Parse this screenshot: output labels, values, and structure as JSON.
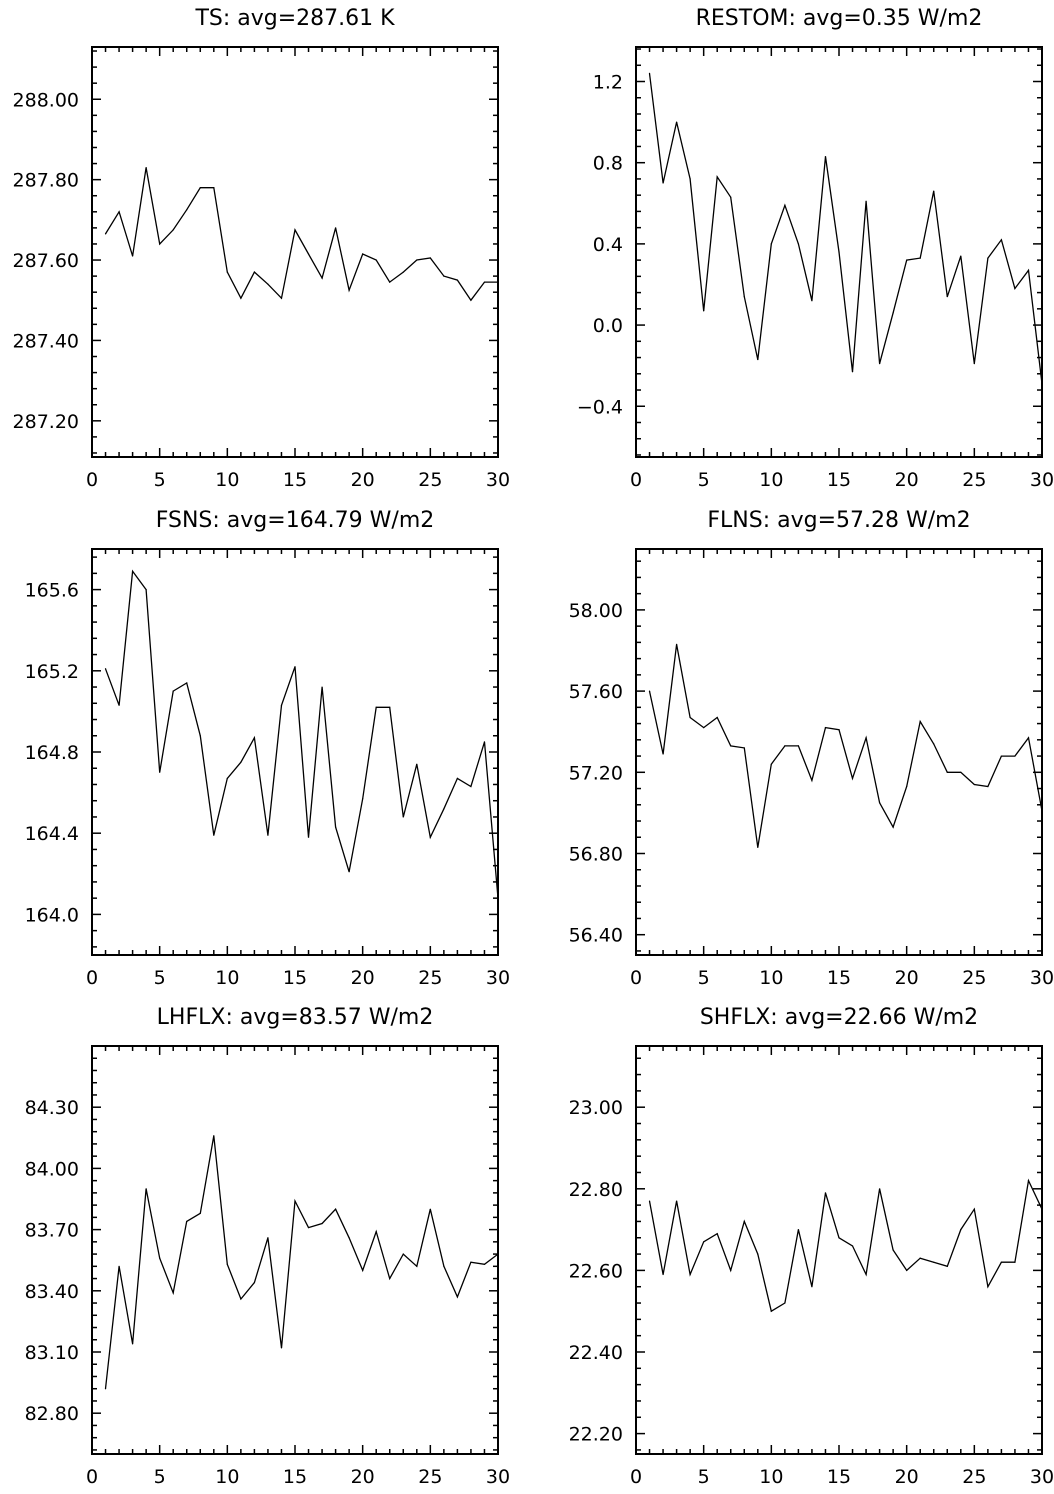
{
  "chart_data": [
    {
      "type": "line",
      "title": "TS: avg=287.61 K",
      "xlim": [
        0,
        30
      ],
      "ylim": [
        287.11,
        288.13
      ],
      "xticks": [
        0,
        5,
        10,
        15,
        20,
        25,
        30
      ],
      "xtick_labels": [
        "0",
        "5",
        "10",
        "15",
        "20",
        "25",
        "30"
      ],
      "yticks": [
        288.0,
        287.8,
        287.6,
        287.4,
        287.2
      ],
      "ytick_labels": [
        "288.00",
        "287.80",
        "287.60",
        "287.40",
        "287.20"
      ],
      "x": [
        1,
        2,
        3,
        4,
        5,
        6,
        7,
        8,
        9,
        10,
        11,
        12,
        13,
        14,
        15,
        16,
        17,
        18,
        19,
        20,
        21,
        22,
        23,
        24,
        25,
        26,
        27,
        28,
        29,
        30
      ],
      "values": [
        287.665,
        287.72,
        287.61,
        287.83,
        287.64,
        287.675,
        287.725,
        287.78,
        287.78,
        287.57,
        287.505,
        287.57,
        287.54,
        287.505,
        287.675,
        287.615,
        287.555,
        287.68,
        287.525,
        287.615,
        287.6,
        287.545,
        287.57,
        287.6,
        287.605,
        287.56,
        287.55,
        287.5,
        287.545,
        287.545
      ]
    },
    {
      "type": "line",
      "title": "RESTOM: avg=0.35 W/m2",
      "xlim": [
        0,
        30
      ],
      "ylim": [
        -0.65,
        1.37
      ],
      "xticks": [
        0,
        5,
        10,
        15,
        20,
        25,
        30
      ],
      "xtick_labels": [
        "0",
        "5",
        "10",
        "15",
        "20",
        "25",
        "30"
      ],
      "yticks": [
        1.2,
        0.8,
        0.4,
        0.0,
        -0.4
      ],
      "ytick_labels": [
        "1.2",
        "0.8",
        "0.4",
        "0.0",
        "−0.4"
      ],
      "x": [
        1,
        2,
        3,
        4,
        5,
        6,
        7,
        8,
        9,
        10,
        11,
        12,
        13,
        14,
        15,
        16,
        17,
        18,
        19,
        20,
        21,
        22,
        23,
        24,
        25,
        26,
        27,
        28,
        29,
        30
      ],
      "values": [
        1.24,
        0.7,
        1.0,
        0.72,
        0.07,
        0.73,
        0.63,
        0.14,
        -0.17,
        0.4,
        0.59,
        0.4,
        0.12,
        0.83,
        0.36,
        -0.23,
        0.61,
        -0.19,
        0.06,
        0.32,
        0.33,
        0.66,
        0.14,
        0.34,
        -0.19,
        0.33,
        0.42,
        0.18,
        0.27,
        -0.29
      ]
    },
    {
      "type": "line",
      "title": "FSNS: avg=164.79 W/m2",
      "xlim": [
        0,
        30
      ],
      "ylim": [
        163.8,
        165.8
      ],
      "xticks": [
        0,
        5,
        10,
        15,
        20,
        25,
        30
      ],
      "xtick_labels": [
        "0",
        "5",
        "10",
        "15",
        "20",
        "25",
        "30"
      ],
      "yticks": [
        165.6,
        165.2,
        164.8,
        164.4,
        164.0
      ],
      "ytick_labels": [
        "165.6",
        "165.2",
        "164.8",
        "164.4",
        "164.0"
      ],
      "x": [
        1,
        2,
        3,
        4,
        5,
        6,
        7,
        8,
        9,
        10,
        11,
        12,
        13,
        14,
        15,
        16,
        17,
        18,
        19,
        20,
        21,
        22,
        23,
        24,
        25,
        26,
        27,
        28,
        29,
        30
      ],
      "values": [
        165.21,
        165.03,
        165.69,
        165.6,
        164.7,
        165.1,
        165.14,
        164.88,
        164.39,
        164.67,
        164.75,
        164.87,
        164.39,
        165.03,
        165.22,
        164.38,
        165.12,
        164.43,
        164.21,
        164.57,
        165.02,
        165.02,
        164.48,
        164.74,
        164.38,
        164.52,
        164.67,
        164.63,
        164.85,
        164.08
      ]
    },
    {
      "type": "line",
      "title": "FLNS: avg=57.28 W/m2",
      "xlim": [
        0,
        30
      ],
      "ylim": [
        56.3,
        58.3
      ],
      "xticks": [
        0,
        5,
        10,
        15,
        20,
        25,
        30
      ],
      "xtick_labels": [
        "0",
        "5",
        "10",
        "15",
        "20",
        "25",
        "30"
      ],
      "yticks": [
        58.0,
        57.6,
        57.2,
        56.8,
        56.4
      ],
      "ytick_labels": [
        "58.00",
        "57.60",
        "57.20",
        "56.80",
        "56.40"
      ],
      "x": [
        1,
        2,
        3,
        4,
        5,
        6,
        7,
        8,
        9,
        10,
        11,
        12,
        13,
        14,
        15,
        16,
        17,
        18,
        19,
        20,
        21,
        22,
        23,
        24,
        25,
        26,
        27,
        28,
        29,
        30
      ],
      "values": [
        57.6,
        57.29,
        57.83,
        57.47,
        57.42,
        57.47,
        57.33,
        57.32,
        56.83,
        57.24,
        57.33,
        57.33,
        57.16,
        57.42,
        57.41,
        57.17,
        57.37,
        57.05,
        56.93,
        57.13,
        57.45,
        57.34,
        57.2,
        57.2,
        57.14,
        57.13,
        57.28,
        57.28,
        57.37,
        57.01
      ]
    },
    {
      "type": "line",
      "title": "LHFLX: avg=83.57 W/m2",
      "xlim": [
        0,
        30
      ],
      "ylim": [
        82.6,
        84.6
      ],
      "xticks": [
        0,
        5,
        10,
        15,
        20,
        25,
        30
      ],
      "xtick_labels": [
        "0",
        "5",
        "10",
        "15",
        "20",
        "25",
        "30"
      ],
      "yticks": [
        84.3,
        84.0,
        83.7,
        83.4,
        83.1,
        82.8
      ],
      "ytick_labels": [
        "84.30",
        "84.00",
        "83.70",
        "83.40",
        "83.10",
        "82.80"
      ],
      "x": [
        1,
        2,
        3,
        4,
        5,
        6,
        7,
        8,
        9,
        10,
        11,
        12,
        13,
        14,
        15,
        16,
        17,
        18,
        19,
        20,
        21,
        22,
        23,
        24,
        25,
        26,
        27,
        28,
        29,
        30
      ],
      "values": [
        82.92,
        83.52,
        83.14,
        83.9,
        83.56,
        83.39,
        83.74,
        83.78,
        84.16,
        83.53,
        83.36,
        83.44,
        83.66,
        83.12,
        83.84,
        83.71,
        83.73,
        83.8,
        83.66,
        83.5,
        83.69,
        83.46,
        83.58,
        83.52,
        83.8,
        83.52,
        83.37,
        83.54,
        83.53,
        83.58
      ]
    },
    {
      "type": "line",
      "title": "SHFLX: avg=22.66 W/m2",
      "xlim": [
        0,
        30
      ],
      "ylim": [
        22.15,
        23.15
      ],
      "xticks": [
        0,
        5,
        10,
        15,
        20,
        25,
        30
      ],
      "xtick_labels": [
        "0",
        "5",
        "10",
        "15",
        "20",
        "25",
        "30"
      ],
      "yticks": [
        23.0,
        22.8,
        22.6,
        22.4,
        22.2
      ],
      "ytick_labels": [
        "23.00",
        "22.80",
        "22.60",
        "22.40",
        "22.20"
      ],
      "x": [
        1,
        2,
        3,
        4,
        5,
        6,
        7,
        8,
        9,
        10,
        11,
        12,
        13,
        14,
        15,
        16,
        17,
        18,
        19,
        20,
        21,
        22,
        23,
        24,
        25,
        26,
        27,
        28,
        29,
        30
      ],
      "values": [
        22.77,
        22.59,
        22.77,
        22.59,
        22.67,
        22.69,
        22.6,
        22.72,
        22.64,
        22.5,
        22.52,
        22.7,
        22.56,
        22.79,
        22.68,
        22.66,
        22.59,
        22.8,
        22.65,
        22.6,
        22.63,
        22.62,
        22.61,
        22.7,
        22.75,
        22.56,
        22.62,
        22.62,
        22.82,
        22.75
      ]
    }
  ]
}
